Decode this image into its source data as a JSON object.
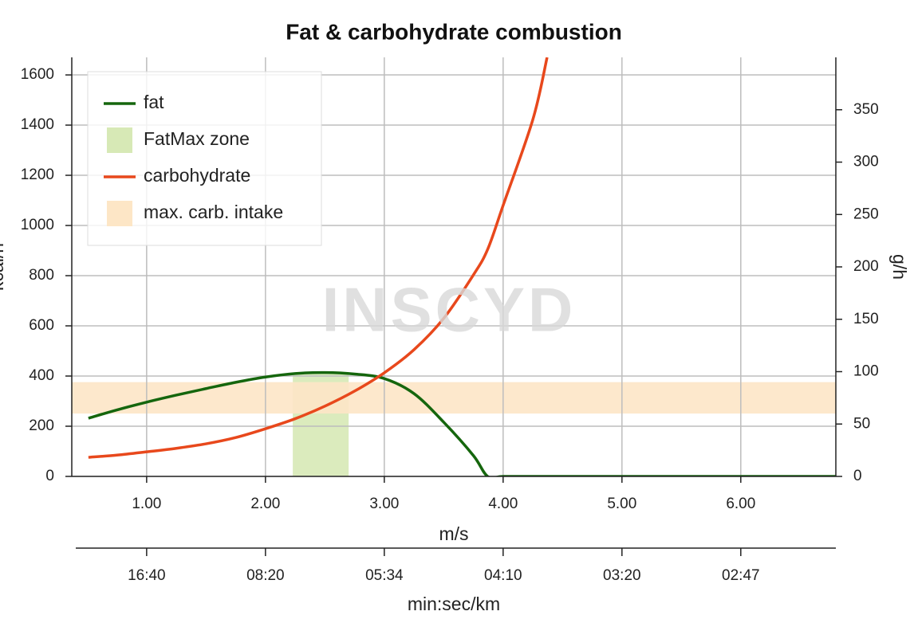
{
  "chart_data": {
    "type": "line",
    "title": "Fat & carbohydrate combustion",
    "watermark": "INSCYD",
    "xlabel": "m/s",
    "ylabel": "kcal/h",
    "y2label": "g/h",
    "x2label": "min:sec/km",
    "x": [
      0.51,
      0.75,
      1.0,
      1.25,
      1.5,
      1.75,
      2.0,
      2.25,
      2.5,
      2.75,
      3.0,
      3.25,
      3.5,
      3.75,
      3.87,
      4.0,
      4.25,
      4.37,
      5.0,
      6.0,
      6.8
    ],
    "series": [
      {
        "name": "fat",
        "color": "#15660d",
        "values": [
          232,
          265,
          296,
          324,
          350,
          375,
          396,
          410,
          414,
          408,
          390,
          330,
          216,
          83,
          0,
          0,
          0,
          0,
          0,
          0,
          0
        ]
      },
      {
        "name": "carbohydrate",
        "color": "#e8481c",
        "values": [
          76,
          85,
          98,
          112,
          130,
          155,
          190,
          230,
          280,
          340,
          413,
          505,
          630,
          803,
          905,
          1080,
          1422,
          1670,
          null,
          null,
          null
        ]
      }
    ],
    "zones": [
      {
        "name": "FatMax zone",
        "color": "#d7e9b6",
        "x": [
          2.23,
          2.7
        ],
        "y": [
          0,
          410
        ]
      },
      {
        "name": "max. carb. intake",
        "color": "#fde6c6",
        "axis": "y2",
        "y": [
          60,
          90
        ]
      }
    ],
    "xlim": [
      0.37,
      6.8
    ],
    "ylim": [
      0,
      1670
    ],
    "y2lim": [
      0,
      400
    ],
    "xticks": [
      {
        "value": 1,
        "label": "1.00"
      },
      {
        "value": 2,
        "label": "2.00"
      },
      {
        "value": 3,
        "label": "3.00"
      },
      {
        "value": 4,
        "label": "4.00"
      },
      {
        "value": 5,
        "label": "5.00"
      },
      {
        "value": 6,
        "label": "6.00"
      }
    ],
    "x2ticks": [
      {
        "value": 1,
        "label": "16:40"
      },
      {
        "value": 2,
        "label": "08:20"
      },
      {
        "value": 3,
        "label": "05:34"
      },
      {
        "value": 4,
        "label": "04:10"
      },
      {
        "value": 5,
        "label": "03:20"
      },
      {
        "value": 6,
        "label": "02:47"
      }
    ],
    "yticks": [
      0,
      200,
      400,
      600,
      800,
      1000,
      1200,
      1400,
      1600
    ],
    "y2ticks": [
      0,
      50,
      100,
      150,
      200,
      250,
      300,
      350
    ],
    "grid": true,
    "legend": "upper left"
  }
}
